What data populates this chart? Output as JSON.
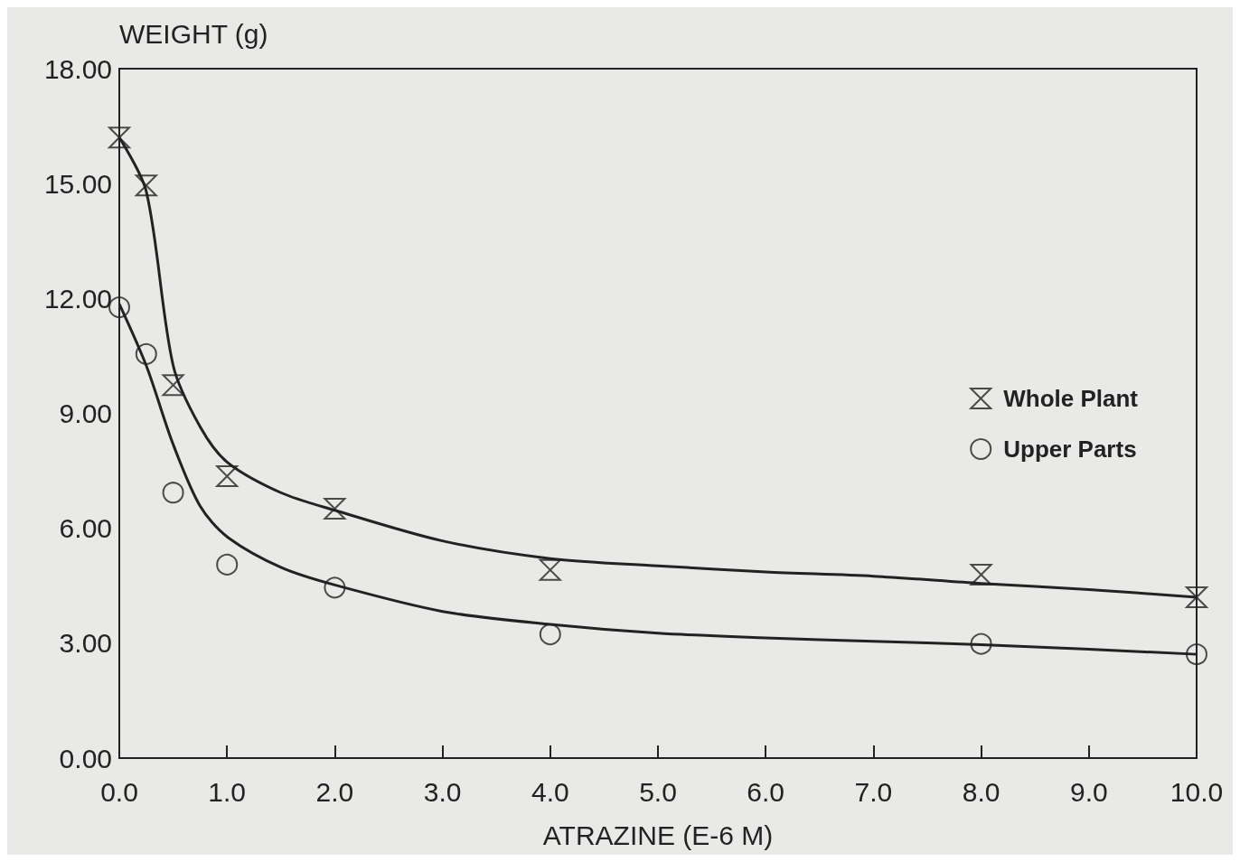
{
  "chart_data": {
    "type": "scatter",
    "xlabel": "ATRAZINE (E-6 M)",
    "ylabel": "WEIGHT (g)",
    "xlim": [
      0,
      10
    ],
    "ylim": [
      0,
      18
    ],
    "xticks": [
      {
        "value": 0,
        "label": "0.0"
      },
      {
        "value": 1,
        "label": "1.0"
      },
      {
        "value": 2,
        "label": "2.0"
      },
      {
        "value": 3,
        "label": "3.0"
      },
      {
        "value": 4,
        "label": "4.0"
      },
      {
        "value": 5,
        "label": "5.0"
      },
      {
        "value": 6,
        "label": "6.0"
      },
      {
        "value": 7,
        "label": "7.0"
      },
      {
        "value": 8,
        "label": "8.0"
      },
      {
        "value": 9,
        "label": "9.0"
      },
      {
        "value": 10,
        "label": "10.0"
      }
    ],
    "yticks": [
      {
        "value": 0,
        "label": "0.00"
      },
      {
        "value": 3,
        "label": "3.00"
      },
      {
        "value": 6,
        "label": "6.00"
      },
      {
        "value": 9,
        "label": "9.00"
      },
      {
        "value": 12,
        "label": "12.00"
      },
      {
        "value": 15,
        "label": "15.00"
      },
      {
        "value": 18,
        "label": "18.00"
      }
    ],
    "grid": false,
    "legend": "right",
    "series": [
      {
        "name": "Whole Plant",
        "color": "#222222",
        "x": [
          0,
          0.25,
          0.5,
          1,
          2,
          4,
          8,
          10
        ],
        "values": [
          16.2,
          14.95,
          9.74,
          7.36,
          6.51,
          4.91,
          4.79,
          4.2
        ]
      },
      {
        "name": "Upper Parts",
        "marker": "circle",
        "color": "#222222",
        "x": [
          0,
          0.25,
          0.5,
          1,
          2,
          4,
          8,
          10
        ],
        "values": [
          11.77,
          10.55,
          6.93,
          5.05,
          4.45,
          3.23,
          2.98,
          2.71
        ]
      },
      {
        "type": "line",
        "marker": "none",
        "line_style": "solid",
        "color": "#222222",
        "x": [
          0,
          0.25,
          0.5,
          0.75,
          1,
          1.5,
          2,
          3,
          4,
          5,
          6,
          7,
          8,
          9,
          10
        ],
        "values": [
          16.2,
          14.8,
          10.25,
          8.65,
          7.73,
          6.93,
          6.47,
          5.67,
          5.21,
          5.02,
          4.86,
          4.75,
          4.56,
          4.4,
          4.2
        ]
      },
      {
        "type": "line",
        "marker": "none",
        "line_style": "solid",
        "color": "#222222",
        "x": [
          0,
          0.25,
          0.5,
          0.75,
          1,
          1.5,
          2,
          3,
          4,
          5,
          6,
          7,
          8,
          9,
          10
        ],
        "values": [
          11.86,
          10.25,
          8.19,
          6.58,
          5.78,
          4.98,
          4.52,
          3.83,
          3.49,
          3.26,
          3.14,
          3.05,
          2.96,
          2.84,
          2.71
        ]
      }
    ]
  }
}
